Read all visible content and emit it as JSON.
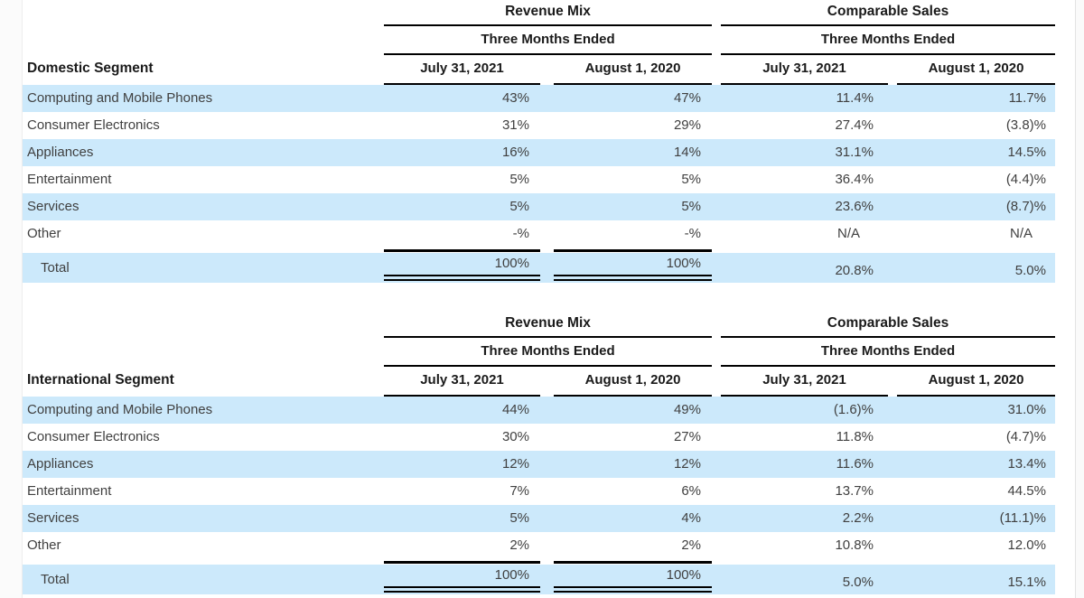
{
  "colors": {
    "stripe": "#cce9fb",
    "text": "#404040",
    "heading": "#1a1a1a",
    "line": "#000000"
  },
  "tables": [
    {
      "segment_label": "Domestic Segment",
      "groups": [
        {
          "title": "Revenue Mix",
          "subtitle": "Three Months Ended"
        },
        {
          "title": "Comparable Sales",
          "subtitle": "Three Months Ended"
        }
      ],
      "col_headers": [
        "July 31, 2021",
        "August 1, 2020",
        "July 31, 2021",
        "August 1, 2020"
      ],
      "rows": [
        {
          "label": "Computing and Mobile Phones",
          "values": [
            "43%",
            "47%",
            "11.4%",
            "11.7%"
          ]
        },
        {
          "label": "Consumer Electronics",
          "values": [
            "31%",
            "29%",
            "27.4%",
            "(3.8)%"
          ]
        },
        {
          "label": "Appliances",
          "values": [
            "16%",
            "14%",
            "31.1%",
            "14.5%"
          ]
        },
        {
          "label": "Entertainment",
          "values": [
            "5%",
            "5%",
            "36.4%",
            "(4.4)%"
          ]
        },
        {
          "label": "Services",
          "values": [
            "5%",
            "5%",
            "23.6%",
            "(8.7)%"
          ]
        },
        {
          "label": "Other",
          "values": [
            "-%",
            "-%",
            "N/A",
            "N/A"
          ]
        }
      ],
      "total": {
        "label": "Total",
        "values": [
          "100%",
          "100%",
          "20.8%",
          "5.0%"
        ]
      }
    },
    {
      "segment_label": "International Segment",
      "groups": [
        {
          "title": "Revenue Mix",
          "subtitle": "Three Months Ended"
        },
        {
          "title": "Comparable Sales",
          "subtitle": "Three Months Ended"
        }
      ],
      "col_headers": [
        "July 31, 2021",
        "August 1, 2020",
        "July 31, 2021",
        "August 1, 2020"
      ],
      "rows": [
        {
          "label": "Computing and Mobile Phones",
          "values": [
            "44%",
            "49%",
            "(1.6)%",
            "31.0%"
          ]
        },
        {
          "label": "Consumer Electronics",
          "values": [
            "30%",
            "27%",
            "11.8%",
            "(4.7)%"
          ]
        },
        {
          "label": "Appliances",
          "values": [
            "12%",
            "12%",
            "11.6%",
            "13.4%"
          ]
        },
        {
          "label": "Entertainment",
          "values": [
            "7%",
            "6%",
            "13.7%",
            "44.5%"
          ]
        },
        {
          "label": "Services",
          "values": [
            "5%",
            "4%",
            "2.2%",
            "(11.1)%"
          ]
        },
        {
          "label": "Other",
          "values": [
            "2%",
            "2%",
            "10.8%",
            "12.0%"
          ]
        }
      ],
      "total": {
        "label": "Total",
        "values": [
          "100%",
          "100%",
          "5.0%",
          "15.1%"
        ]
      }
    }
  ]
}
